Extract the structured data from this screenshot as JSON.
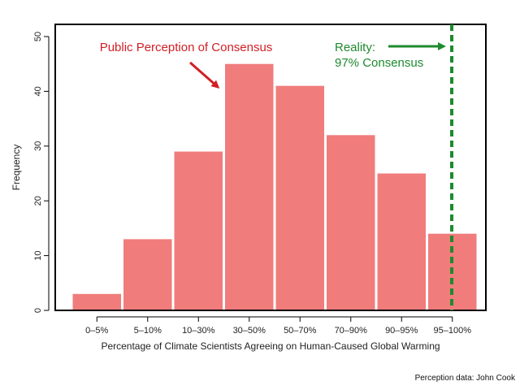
{
  "chart_data": {
    "type": "bar",
    "title": "",
    "xlabel": "Percentage of Climate Scientists Agreeing on Human-Caused Global Warming",
    "ylabel": "Frequency",
    "categories": [
      "0–5%",
      "5–10%",
      "10–30%",
      "30–50%",
      "50–70%",
      "70–90%",
      "90–95%",
      "95–100%"
    ],
    "values": [
      3,
      13,
      29,
      45,
      41,
      32,
      25,
      14
    ],
    "ylim": [
      0,
      50
    ],
    "yticks": [
      0,
      10,
      20,
      30,
      40,
      50
    ],
    "grid": false,
    "bar_color": "#f07c7c",
    "reference_line": {
      "category": "95–100%",
      "value_percent": 97,
      "color": "#1e8a2e",
      "style": "dashed"
    },
    "annotations": {
      "perception_label": "Public Perception of Consensus",
      "reality_label": "Reality:",
      "reality_value": "97% Consensus"
    }
  },
  "credit": "Perception data: John Cook",
  "colors": {
    "red_text": "#d11f25",
    "green": "#1e8a2e"
  }
}
